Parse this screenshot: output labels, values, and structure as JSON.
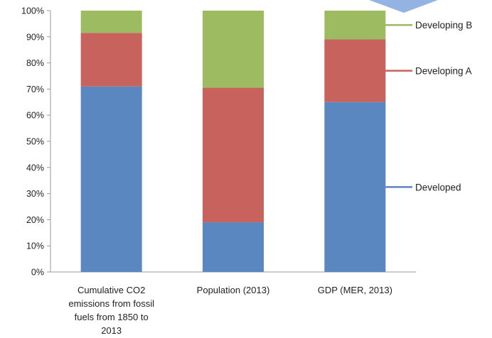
{
  "chart_data": {
    "type": "bar",
    "stacked": true,
    "categories": [
      [
        "Cumulative CO2",
        "emissions from fossil",
        "fuels from 1850 to",
        "2013"
      ],
      [
        "Population (2013)"
      ],
      [
        "GDP (MER, 2013)"
      ]
    ],
    "series": [
      {
        "name": "Developed",
        "color": "#5a87bf",
        "values": [
          71,
          19,
          65
        ]
      },
      {
        "name": "Developing A",
        "color": "#c8625c",
        "values": [
          20.5,
          51.5,
          24
        ]
      },
      {
        "name": "Developing B",
        "color": "#9dbb61",
        "values": [
          8.5,
          29.5,
          11
        ]
      }
    ],
    "ylim": [
      0,
      100
    ],
    "yticks": [
      0,
      10,
      20,
      30,
      40,
      50,
      60,
      70,
      80,
      90,
      100
    ],
    "ytick_labels": [
      "0%",
      "10%",
      "20%",
      "30%",
      "40%",
      "50%",
      "60%",
      "70%",
      "80%",
      "90%",
      "100%"
    ],
    "title": "",
    "xlabel": "",
    "ylabel": "",
    "grid": false,
    "legend": "right, aligned to last bar",
    "decoration_arrow_color": "#93b3e2"
  }
}
